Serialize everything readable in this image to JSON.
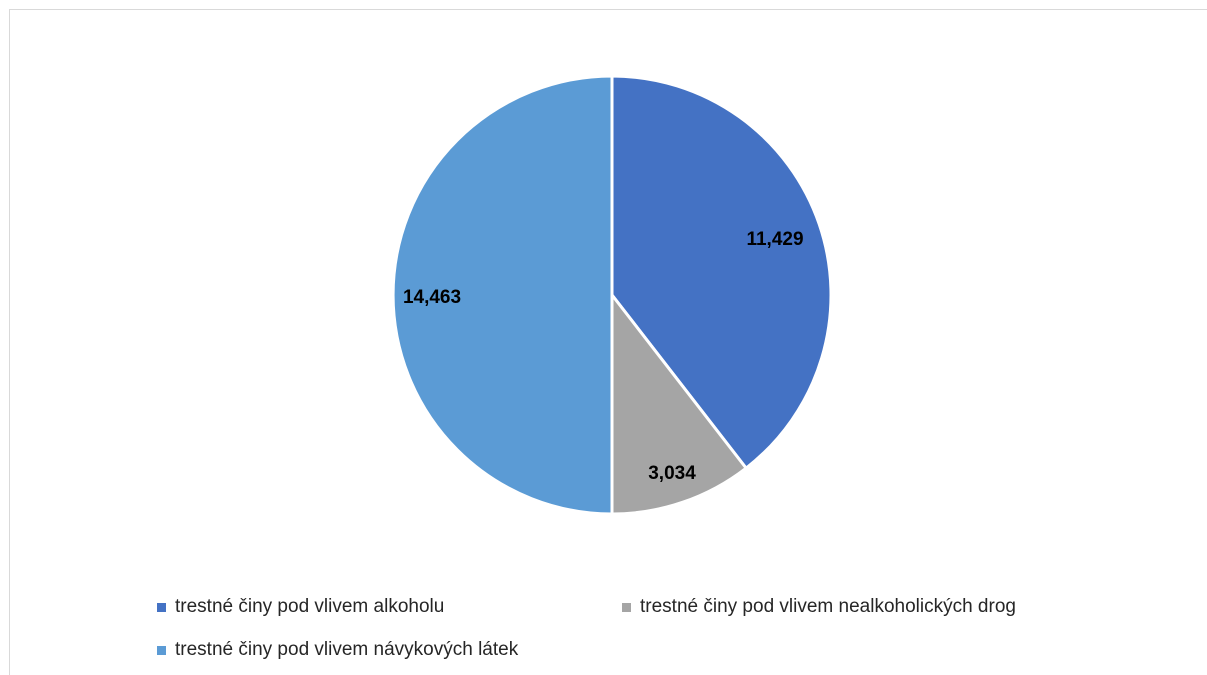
{
  "chart_data": {
    "type": "pie",
    "title": "",
    "slices": [
      {
        "label": "trestné činy pod vlivem alkoholu",
        "value": 11429,
        "display": "11,429",
        "color": "#4472c4"
      },
      {
        "label": "trestné činy pod vlivem nealkoholických drog",
        "value": 3034,
        "display": "3,034",
        "color": "#a5a5a5"
      },
      {
        "label": "trestné činy pod vlivem návykových látek",
        "value": 14463,
        "display": "14,463",
        "color": "#5b9bd5"
      }
    ],
    "start_angle": "12 o'clock",
    "direction": "clockwise",
    "legend_position": "bottom"
  }
}
